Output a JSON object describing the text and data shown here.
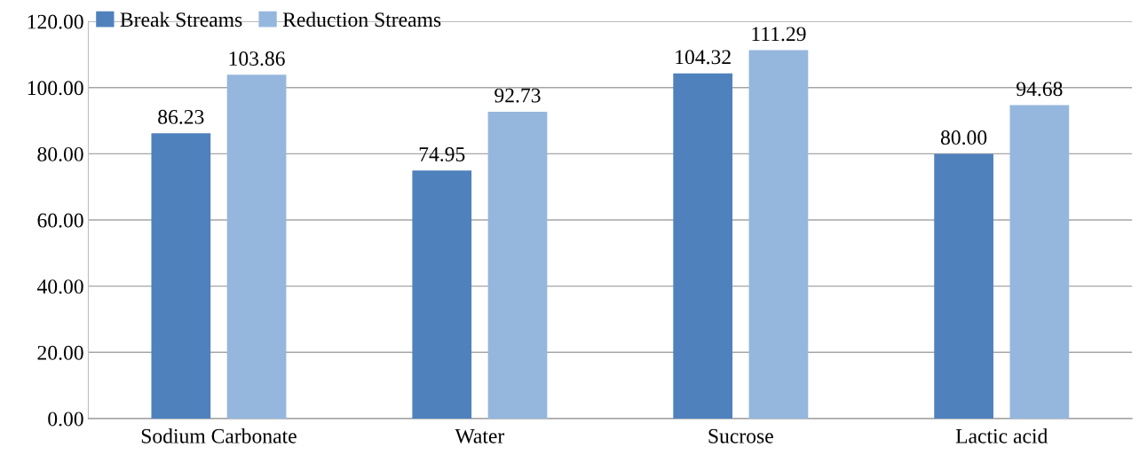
{
  "chart_data": {
    "type": "bar",
    "categories": [
      "Sodium Carbonate",
      "Water",
      "Sucrose",
      "Lactic acid"
    ],
    "series": [
      {
        "name": "Break Streams",
        "color": "#4f81bd",
        "values": [
          86.23,
          74.95,
          104.32,
          80.0
        ],
        "value_labels": [
          "86.23",
          "74.95",
          "104.32",
          "80.00"
        ]
      },
      {
        "name": "Reduction Streams",
        "color": "#95b7de",
        "values": [
          103.86,
          92.73,
          111.29,
          94.68
        ],
        "value_labels": [
          "103.86",
          "92.73",
          "111.29",
          "94.68"
        ]
      }
    ],
    "ylim": [
      0,
      120
    ],
    "yticks": [
      {
        "value": 0,
        "label": "0.00"
      },
      {
        "value": 20,
        "label": "20.00"
      },
      {
        "value": 40,
        "label": "40.00"
      },
      {
        "value": 60,
        "label": "60.00"
      },
      {
        "value": 80,
        "label": "80.00"
      },
      {
        "value": 100,
        "label": "100.00"
      },
      {
        "value": 120,
        "label": "120.00"
      }
    ],
    "grid": "y",
    "legend": "top left"
  }
}
